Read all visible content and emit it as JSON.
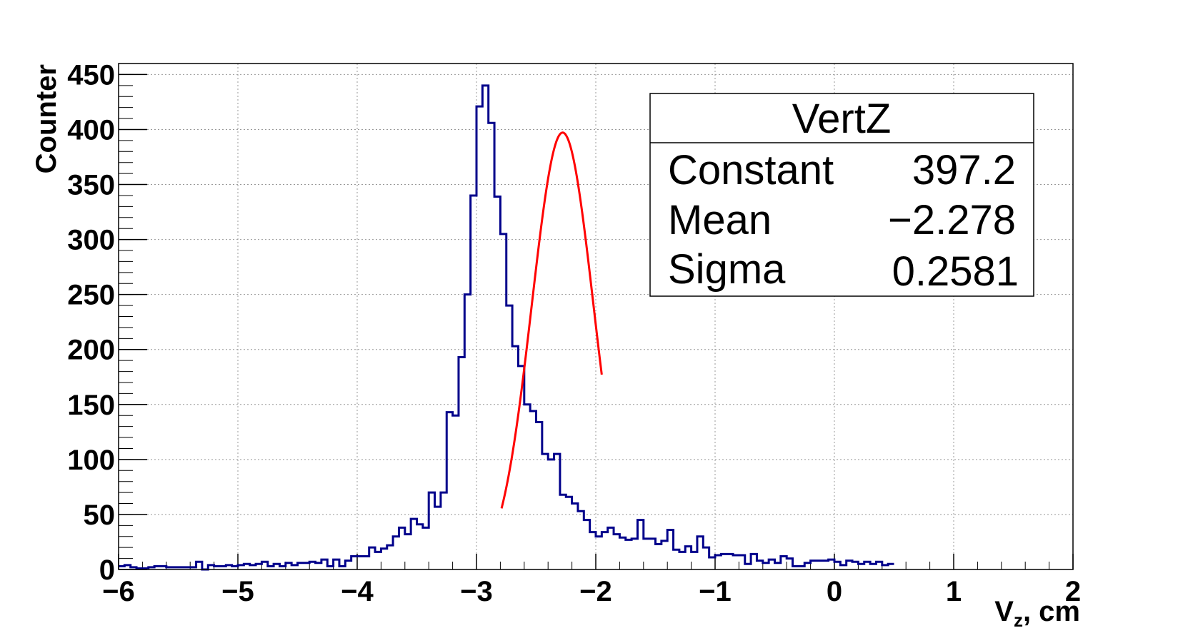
{
  "chart_data": {
    "type": "histogram",
    "title": "",
    "xlabel_main": "V",
    "xlabel_sub": "z",
    "xlabel_rest": ", cm",
    "ylabel": "Counter",
    "xlim": [
      -6,
      2
    ],
    "ylim": [
      0,
      460
    ],
    "x_ticks": [
      -6,
      -5,
      -4,
      -3,
      -2,
      -1,
      0,
      1,
      2
    ],
    "x_tick_labels": [
      "−6",
      "−5",
      "−4",
      "−3",
      "−2",
      "−1",
      "0",
      "1",
      "2"
    ],
    "y_ticks": [
      0,
      50,
      100,
      150,
      200,
      250,
      300,
      350,
      400,
      450
    ],
    "y_tick_labels": [
      "0",
      "50",
      "100",
      "150",
      "200",
      "250",
      "300",
      "350",
      "400",
      "450"
    ],
    "grid": true,
    "bin_width": 0.05,
    "bin_start": -6,
    "counts": [
      3,
      4,
      2,
      1,
      1,
      2,
      3,
      3,
      2,
      2,
      2,
      2,
      2,
      7,
      0,
      4,
      3,
      3,
      4,
      3,
      4,
      5,
      4,
      5,
      7,
      3,
      5,
      3,
      6,
      4,
      6,
      6,
      7,
      6,
      9,
      3,
      9,
      3,
      8,
      12,
      12,
      12,
      20,
      16,
      19,
      22,
      30,
      38,
      32,
      46,
      41,
      38,
      70,
      57,
      70,
      143,
      140,
      193,
      250,
      340,
      421,
      440,
      406,
      339,
      305,
      240,
      203,
      185,
      150,
      144,
      134,
      105,
      100,
      105,
      68,
      66,
      60,
      53,
      45,
      34,
      30,
      34,
      38,
      32,
      29,
      27,
      28,
      45,
      28,
      28,
      23,
      26,
      36,
      18,
      16,
      21,
      16,
      30,
      20,
      11,
      13,
      14,
      14,
      13,
      13,
      5,
      14,
      8,
      6,
      9,
      6,
      12,
      10,
      3,
      3,
      6,
      8,
      8,
      8,
      9,
      7,
      4,
      8,
      7,
      5,
      7,
      5,
      7,
      4,
      5
    ],
    "fit": {
      "function": "gaus",
      "constant": 397.2,
      "mean": -2.278,
      "sigma": 0.2581,
      "range": [
        -2.79,
        -1.95
      ]
    },
    "colors": {
      "histogram": "#00008b",
      "fit": "#ff0000",
      "grid": "#bbbbbb"
    },
    "legend": {
      "placement": "top-right",
      "title": "VertZ",
      "rows": [
        {
          "label": "Constant",
          "value": "397.2"
        },
        {
          "label": "Mean",
          "value": "−2.278"
        },
        {
          "label": "Sigma",
          "value": "0.2581"
        }
      ]
    }
  }
}
